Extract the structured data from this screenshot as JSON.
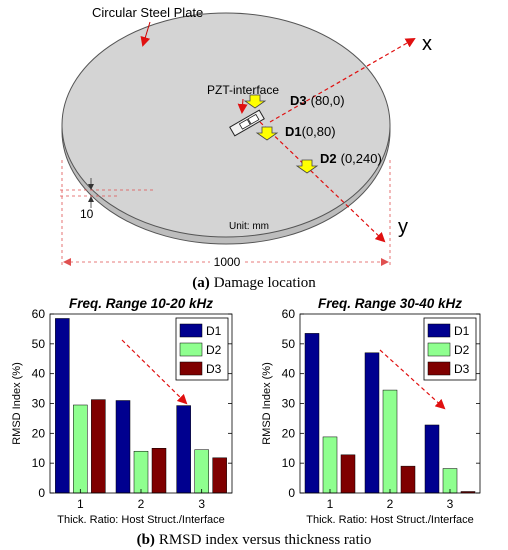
{
  "diagram": {
    "plate_label": "Circular Steel Plate",
    "interface_label": "PZT-interface",
    "axis_x": "x",
    "axis_y": "y",
    "thickness_dim": "10",
    "diameter_dim": "1000",
    "unit": "Unit: mm",
    "damages": [
      {
        "name": "D3",
        "coord": "(80,0)"
      },
      {
        "name": "D1",
        "coord": "(0,80)"
      },
      {
        "name": "D2",
        "coord": "(0,240)"
      }
    ],
    "caption_tag": "(a)",
    "caption_text": "Damage location"
  },
  "chart_data": [
    {
      "type": "bar",
      "title": "Freq. Range 10-20 kHz",
      "xlabel": "Thick. Ratio: Host Struct./Interface",
      "ylabel": "RMSD Index (%)",
      "categories": [
        "1",
        "2",
        "3"
      ],
      "ylim": [
        0,
        60
      ],
      "yticks": [
        "0",
        "10",
        "20",
        "30",
        "40",
        "50",
        "60"
      ],
      "legend_position": "top-right",
      "series": [
        {
          "name": "D1",
          "color": "#00008f",
          "values": [
            58.5,
            31,
            29.3
          ]
        },
        {
          "name": "D2",
          "color": "#8fff8f",
          "values": [
            29.5,
            14,
            14.5
          ]
        },
        {
          "name": "D3",
          "color": "#7f0000",
          "values": [
            31.3,
            15,
            11.8
          ]
        }
      ]
    },
    {
      "type": "bar",
      "title": "Freq. Range 30-40 kHz",
      "xlabel": "Thick. Ratio: Host Struct./Interface",
      "ylabel": "RMSD Index (%)",
      "categories": [
        "1",
        "2",
        "3"
      ],
      "ylim": [
        0,
        60
      ],
      "yticks": [
        "0",
        "10",
        "20",
        "30",
        "40",
        "50",
        "60"
      ],
      "legend_position": "top-right",
      "series": [
        {
          "name": "D1",
          "color": "#00008f",
          "values": [
            53.5,
            47,
            22.8
          ]
        },
        {
          "name": "D2",
          "color": "#8fff8f",
          "values": [
            18.8,
            34.5,
            8.2
          ]
        },
        {
          "name": "D3",
          "color": "#7f0000",
          "values": [
            12.8,
            9,
            0.5
          ]
        }
      ]
    }
  ],
  "caption_b": {
    "tag": "(b)",
    "text": "RMSD index versus thickness ratio"
  }
}
